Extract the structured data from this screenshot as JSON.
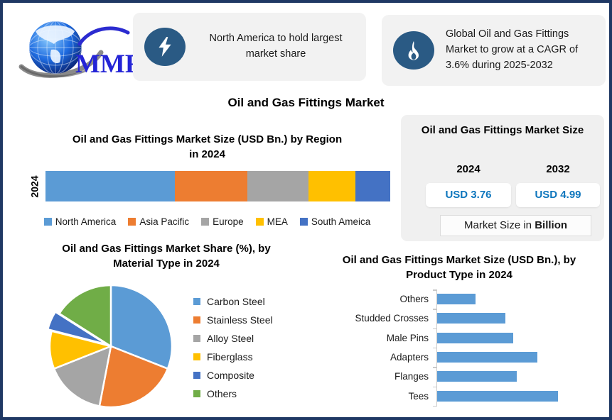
{
  "logo": {
    "text": "MMR"
  },
  "callouts": [
    {
      "icon": "lightning-icon",
      "text": "North America to hold largest market share"
    },
    {
      "icon": "flame-icon",
      "text": "Global Oil and Gas Fittings Market to grow at a CAGR of 3.6% during 2025-2032"
    }
  ],
  "main_title": "Oil and Gas Fittings Market",
  "market_size_panel": {
    "title": "Oil and Gas Fittings Market Size",
    "years": [
      {
        "year": "2024",
        "value": "USD 3.76"
      },
      {
        "year": "2032",
        "value": "USD 4.99"
      }
    ],
    "note_prefix": "Market Size in ",
    "note_bold": "Billion"
  },
  "colors": {
    "outer_border": "#1F3864",
    "callout_bg": "#F2F2F2",
    "icon_circle_bg": "#2A5A84",
    "value_blue": "#0E76BD",
    "panel_bg": "#F0F0F0",
    "logo_blue": "#2424D6"
  },
  "chart_data": [
    {
      "type": "bar",
      "subtype": "stacked-horizontal",
      "title": "Oil and Gas Fittings Market Size (USD Bn.) by Region in 2024",
      "category": "2024",
      "unit": "share of bar, %",
      "series": [
        {
          "name": "North America",
          "value": 37.5,
          "color": "#5B9BD5"
        },
        {
          "name": "Asia Pacific",
          "value": 21.0,
          "color": "#ED7D31"
        },
        {
          "name": "Europe",
          "value": 17.7,
          "color": "#A5A5A5"
        },
        {
          "name": "MEA",
          "value": 13.8,
          "color": "#FFC000"
        },
        {
          "name": "South Ameica",
          "value": 10.0,
          "color": "#4472C4"
        }
      ],
      "legend_position": "bottom"
    },
    {
      "type": "pie",
      "title": "Oil and Gas Fittings Market Share (%), by Material Type in 2024",
      "slices": [
        {
          "label": "Carbon Steel",
          "value": 31,
          "color": "#5B9BD5"
        },
        {
          "label": "Stainless Steel",
          "value": 22,
          "color": "#ED7D31"
        },
        {
          "label": "Alloy Steel",
          "value": 16,
          "color": "#A5A5A5"
        },
        {
          "label": "Fiberglass",
          "value": 10,
          "color": "#FFC000"
        },
        {
          "label": "Composite",
          "value": 5,
          "color": "#4472C4",
          "exploded": true
        },
        {
          "label": "Others",
          "value": 16,
          "color": "#70AD47"
        }
      ],
      "legend_position": "right"
    },
    {
      "type": "bar",
      "subtype": "horizontal",
      "title": "Oil and Gas Fittings Market Size (USD Bn.), by Product Type in 2024",
      "categories": [
        "Others",
        "Studded Crosses",
        "Male Pins",
        "Adapters",
        "Flanges",
        "Tees"
      ],
      "values": [
        0.3,
        0.53,
        0.59,
        0.78,
        0.62,
        0.94
      ],
      "xlim": [
        0,
        1.0
      ],
      "bar_color": "#5B9BD5",
      "grid": false
    }
  ]
}
